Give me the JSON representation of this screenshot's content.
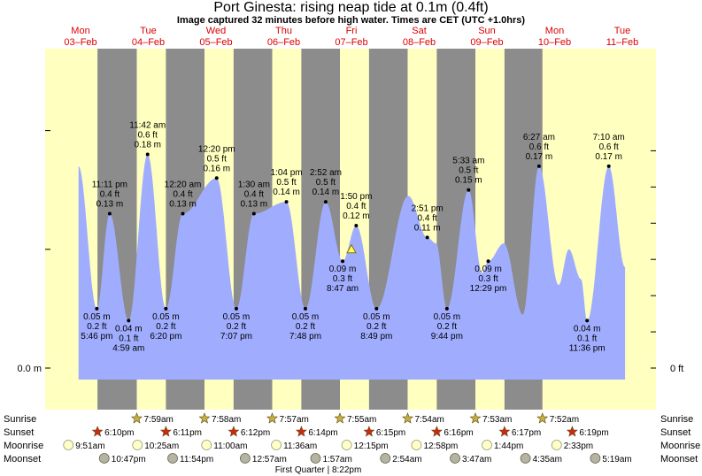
{
  "header": {
    "title": "Port Ginesta: rising  neap tide at 0.1m (0.4ft)",
    "subtitle": "Image captured 32 minutes before high water. Times are CET (UTC +1.0hrs)"
  },
  "colors": {
    "day": "#ffffc0",
    "night": "#8c8c8c",
    "tide_fill": "#a0adff",
    "date_text": "#dd0000",
    "sun_star": "#c8b040",
    "sunset_star": "#d02810",
    "moonrise": "#ffffc8",
    "moonset": "#b4b4a0"
  },
  "chart_data": {
    "type": "area",
    "title": "Port Ginesta: rising  neap tide at 0.1m (0.4ft)",
    "days": [
      {
        "day": "Mon",
        "date": "03–Feb"
      },
      {
        "day": "Tue",
        "date": "04–Feb"
      },
      {
        "day": "Wed",
        "date": "05–Feb"
      },
      {
        "day": "Thu",
        "date": "06–Feb"
      },
      {
        "day": "Fri",
        "date": "07–Feb"
      },
      {
        "day": "Sat",
        "date": "08–Feb"
      },
      {
        "day": "Sun",
        "date": "09–Feb"
      },
      {
        "day": "Mon",
        "date": "10–Feb"
      },
      {
        "day": "Tue",
        "date": "11–Feb"
      }
    ],
    "y_left_label": "0.0 m",
    "y_right_label": "0 ft",
    "ylim_m": [
      -0.015,
      0.215
    ],
    "xlim_days": [
      -0.55,
      8.45
    ],
    "extremes": [
      {
        "t": 0.24,
        "m": 0.05,
        "ft": "0.2 ft",
        "time": "5:46 pm",
        "type": "low"
      },
      {
        "t": 0.43,
        "m": 0.13,
        "ft": "0.4 ft",
        "time": "11:11 pm",
        "type": "high"
      },
      {
        "t": 0.71,
        "m": 0.04,
        "ft": "0.1 ft",
        "time": "4:59 am",
        "type": "low"
      },
      {
        "t": 0.99,
        "m": 0.18,
        "ft": "0.6 ft",
        "time": "11:42 am",
        "type": "high"
      },
      {
        "t": 1.26,
        "m": 0.05,
        "ft": "0.2 ft",
        "time": "6:20 pm",
        "type": "low"
      },
      {
        "t": 1.51,
        "m": 0.13,
        "ft": "0.4 ft",
        "time": "12:20 am",
        "type": "high"
      },
      {
        "t": 2.01,
        "m": 0.16,
        "ft": "0.5 ft",
        "time": "12:20 pm",
        "type": "high"
      },
      {
        "t": 2.3,
        "m": 0.05,
        "ft": "0.2 ft",
        "time": "7:07 pm",
        "type": "low"
      },
      {
        "t": 2.56,
        "m": 0.13,
        "ft": "0.4 ft",
        "time": "1:30 am",
        "type": "high"
      },
      {
        "t": 3.04,
        "m": 0.14,
        "ft": "0.5 ft",
        "time": "1:04 pm",
        "type": "high"
      },
      {
        "t": 3.32,
        "m": 0.05,
        "ft": "0.2 ft",
        "time": "7:48 pm",
        "type": "low"
      },
      {
        "t": 3.62,
        "m": 0.14,
        "ft": "0.5 ft",
        "time": "2:52 am",
        "type": "high"
      },
      {
        "t": 3.87,
        "m": 0.09,
        "ft": "0.3 ft",
        "time": "8:47 am",
        "type": "low"
      },
      {
        "t": 4.07,
        "m": 0.12,
        "ft": "0.4 ft",
        "time": "1:50 pm",
        "type": "high"
      },
      {
        "t": 4.37,
        "m": 0.05,
        "ft": "0.2 ft",
        "time": "8:49 pm",
        "type": "low"
      },
      {
        "t": 5.12,
        "m": 0.11,
        "ft": "0.4 ft",
        "time": "2:51 pm",
        "type": "high"
      },
      {
        "t": 5.41,
        "m": 0.05,
        "ft": "0.2 ft",
        "time": "9:44 pm",
        "type": "low"
      },
      {
        "t": 5.73,
        "m": 0.15,
        "ft": "0.5 ft",
        "time": "5:33 am",
        "type": "high"
      },
      {
        "t": 6.02,
        "m": 0.09,
        "ft": "0.3 ft",
        "time": "12:29 pm",
        "type": "low"
      },
      {
        "t": 6.77,
        "m": 0.17,
        "ft": "0.6 ft",
        "time": "6:27 am",
        "type": "high"
      },
      {
        "t": 7.48,
        "m": 0.04,
        "ft": "0.1 ft",
        "time": "11:36 pm",
        "type": "low"
      },
      {
        "t": 7.8,
        "m": 0.17,
        "ft": "0.6 ft",
        "time": "7:10 am",
        "type": "high"
      }
    ],
    "unlabeled_extremes": [
      {
        "t": 4.84,
        "m": 0.145
      },
      {
        "t": 5.25,
        "m": 0.105
      },
      {
        "t": 5.93,
        "m": 0.08
      },
      {
        "t": 6.25,
        "m": 0.105
      },
      {
        "t": 6.53,
        "m": 0.045
      },
      {
        "t": 7.06,
        "m": 0.07
      },
      {
        "t": 7.21,
        "m": 0.1
      },
      {
        "t": 7.39,
        "m": 0.075
      }
    ],
    "tide_start": {
      "t": -0.03,
      "m": 0.17
    },
    "tide_end": {
      "t": 8.04,
      "m": 0.085
    },
    "night_bands": [
      {
        "start": 0.25,
        "end": 0.83
      },
      {
        "start": 1.26,
        "end": 1.83
      },
      {
        "start": 2.26,
        "end": 2.83
      },
      {
        "start": 3.26,
        "end": 3.83
      },
      {
        "start": 4.26,
        "end": 4.83
      },
      {
        "start": 5.26,
        "end": 5.83
      },
      {
        "start": 6.26,
        "end": 6.82
      }
    ],
    "current": {
      "t": 4.0,
      "m": 0.1
    },
    "sunrise": [
      {
        "t": 0.83,
        "label": "7:59am"
      },
      {
        "t": 1.83,
        "label": "7:58am"
      },
      {
        "t": 2.83,
        "label": "7:57am"
      },
      {
        "t": 3.83,
        "label": "7:55am"
      },
      {
        "t": 4.83,
        "label": "7:54am"
      },
      {
        "t": 5.83,
        "label": "7:53am"
      },
      {
        "t": 6.82,
        "label": "7:52am"
      }
    ],
    "sunset": [
      {
        "t": 0.25,
        "label": "6:10pm"
      },
      {
        "t": 1.26,
        "label": "6:11pm"
      },
      {
        "t": 2.26,
        "label": "6:12pm"
      },
      {
        "t": 3.26,
        "label": "6:14pm"
      },
      {
        "t": 4.26,
        "label": "6:15pm"
      },
      {
        "t": 5.26,
        "label": "6:16pm"
      },
      {
        "t": 6.26,
        "label": "6:17pm"
      },
      {
        "t": 7.26,
        "label": "6:19pm"
      }
    ],
    "moonrise": [
      {
        "t": -0.18,
        "label": "9:51am"
      },
      {
        "t": 0.84,
        "label": "10:25am"
      },
      {
        "t": 1.86,
        "label": "11:00am"
      },
      {
        "t": 2.89,
        "label": "11:36am"
      },
      {
        "t": 3.93,
        "label": "12:15pm"
      },
      {
        "t": 4.96,
        "label": "12:58pm"
      },
      {
        "t": 6.0,
        "label": "1:44pm"
      },
      {
        "t": 7.03,
        "label": "2:33pm"
      }
    ],
    "moonset": [
      {
        "t": 0.35,
        "label": "10:47pm"
      },
      {
        "t": 1.36,
        "label": "11:54pm"
      },
      {
        "t": 2.43,
        "label": "12:57am"
      },
      {
        "t": 3.47,
        "label": "1:57am"
      },
      {
        "t": 4.5,
        "label": "2:54am"
      },
      {
        "t": 5.53,
        "label": "3:47am"
      },
      {
        "t": 6.57,
        "label": "4:35am"
      },
      {
        "t": 7.6,
        "label": "5:19am"
      }
    ],
    "moon_phase": {
      "t": 3.51,
      "label": "First Quarter | 8:22pm"
    }
  },
  "bottom_rows": {
    "sunrise": "Sunrise",
    "sunset": "Sunset",
    "moonrise": "Moonrise",
    "moonset": "Moonset"
  }
}
